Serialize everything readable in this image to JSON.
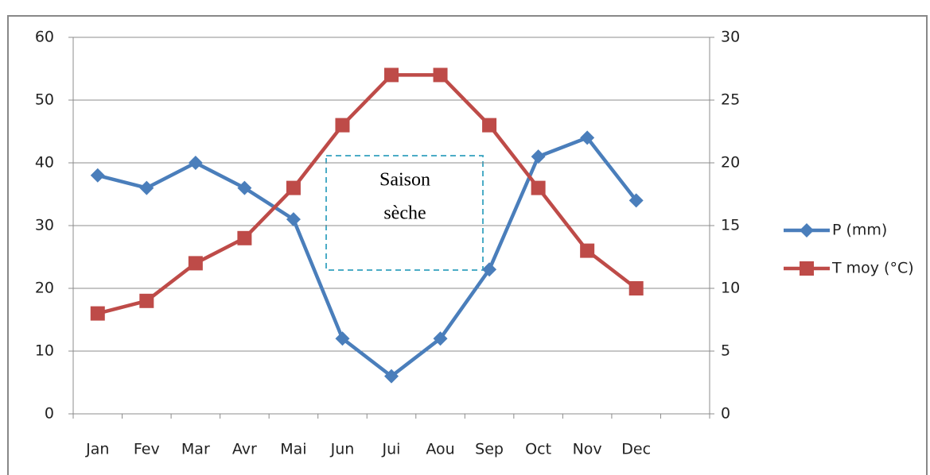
{
  "chart_data": {
    "type": "line",
    "categories": [
      "Jan",
      "Fev",
      "Mar",
      "Avr",
      "Mai",
      "Jun",
      "Jui",
      "Aou",
      "Sep",
      "Oct",
      "Nov",
      "Dec",
      null
    ],
    "series": [
      {
        "name": "P (mm)",
        "color": "#4a7ebb",
        "marker": "diamond",
        "values": [
          38,
          36,
          40,
          36,
          31,
          12,
          6,
          12,
          23,
          41,
          44,
          34,
          null
        ]
      },
      {
        "name": "T moy (°C)",
        "color": "#be4b48",
        "marker": "square",
        "axis": "y2",
        "values": [
          8,
          9,
          12,
          14,
          18,
          23,
          27,
          27,
          23,
          18,
          13,
          10,
          null
        ]
      }
    ],
    "ylim": [
      0,
      60
    ],
    "yticks": [
      0,
      10,
      20,
      30,
      40,
      50,
      60
    ],
    "y2lim": [
      0,
      30
    ],
    "y2ticks": [
      0,
      5,
      10,
      15,
      20,
      25,
      30
    ],
    "grid": true,
    "legend": "right",
    "annotation": [
      "Saison",
      "sèche"
    ]
  }
}
